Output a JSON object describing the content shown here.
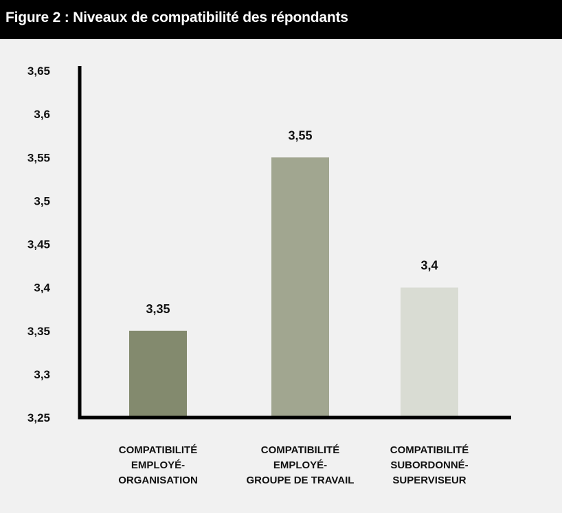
{
  "figure_title": "Figure 2 : Niveaux de compatibilité des répondants",
  "colors": {
    "title_background": "#000000",
    "panel_background": "#f1f1f1",
    "axis": "#000000"
  },
  "chart_data": {
    "type": "bar",
    "title": "Figure 2 : Niveaux de compatibilité des répondants",
    "xlabel": "",
    "ylabel": "",
    "ylim": [
      3.25,
      3.65
    ],
    "grid": false,
    "legend": "none",
    "y_tick_labels": [
      "3,25",
      "3,3",
      "3,35",
      "3,4",
      "3,45",
      "3,5",
      "3,55",
      "3,6",
      "3,65"
    ],
    "y_ticks": [
      3.25,
      3.3,
      3.35,
      3.4,
      3.45,
      3.5,
      3.55,
      3.6,
      3.65
    ],
    "categories": [
      [
        "COMPATIBILITÉ",
        "EMPLOYÉ-",
        "ORGANISATION"
      ],
      [
        "COMPATIBILITÉ",
        "EMPLOYÉ-",
        "GROUPE DE TRAVAIL"
      ],
      [
        "COMPATIBILITÉ",
        "SUBORDONNÉ-",
        "SUPERVISEUR"
      ]
    ],
    "values": [
      3.35,
      3.55,
      3.4
    ],
    "value_labels": [
      "3,35",
      "3,55",
      "3,4"
    ],
    "bar_colors": [
      "#838a6e",
      "#a1a690",
      "#d9dcd3"
    ]
  }
}
